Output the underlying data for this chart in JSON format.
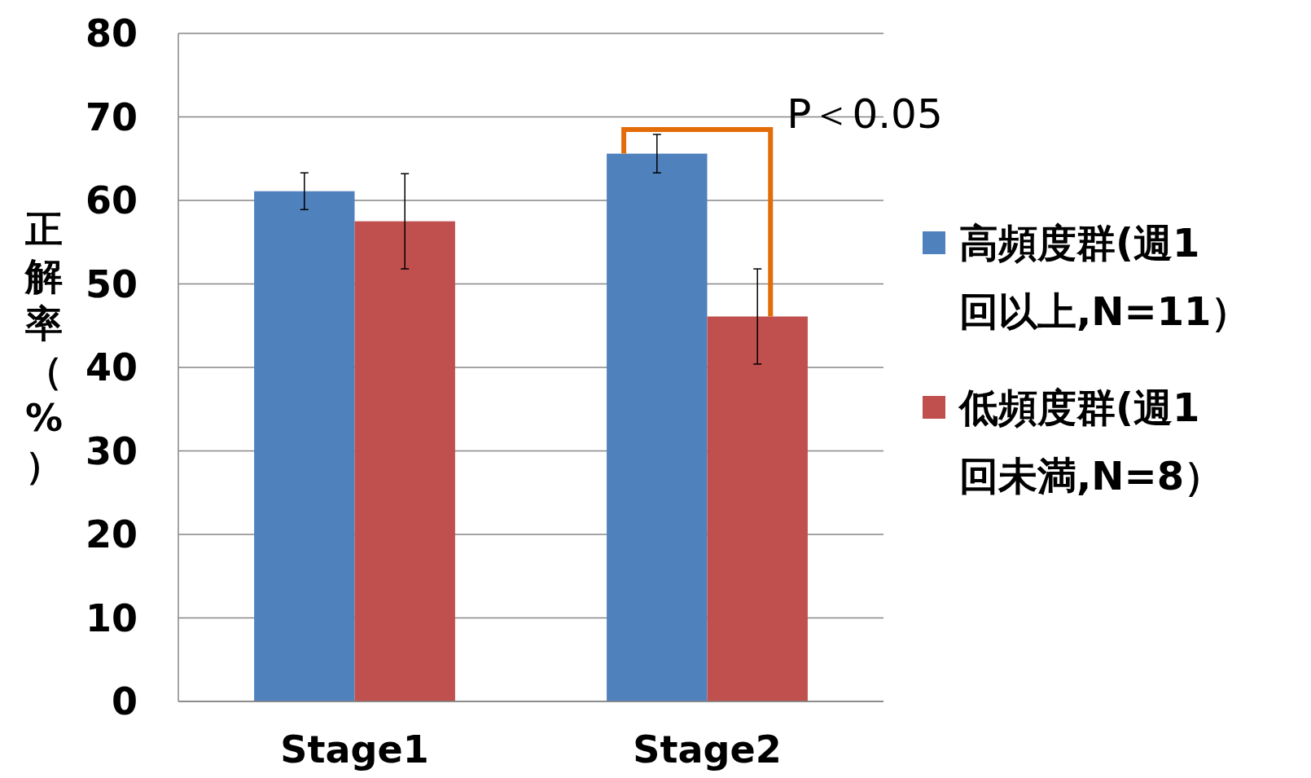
{
  "chart_data": {
    "type": "bar",
    "categories": [
      "Stage1",
      "Stage2"
    ],
    "series": [
      {
        "name": "高頻度群(週1回以上,N=11）",
        "color": "#4f81bd",
        "values": [
          61.1,
          65.6
        ],
        "errors": [
          2.2,
          2.3
        ]
      },
      {
        "name": "低頻度群(週1回未満,N=8）",
        "color": "#c0504d",
        "values": [
          57.5,
          46.1
        ],
        "errors": [
          5.7,
          5.7
        ]
      }
    ],
    "ylabel": "正解率（%）",
    "ylim": [
      0,
      80
    ],
    "yticks": [
      0,
      10,
      20,
      30,
      40,
      50,
      60,
      70,
      80
    ],
    "grid": "y",
    "legend": "right",
    "annotations": [
      "P＜0.05"
    ]
  }
}
